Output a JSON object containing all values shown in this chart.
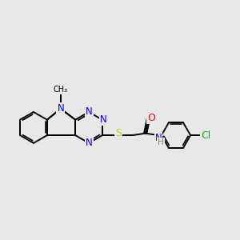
{
  "background_color": "#e8e8e8",
  "bond_color": "#000000",
  "atom_colors": {
    "N": "#0000ff",
    "S": "#cccc00",
    "O": "#ff0000",
    "Cl": "#00bb00",
    "H": "#888888",
    "C": "#000000"
  },
  "figsize": [
    3.0,
    3.0
  ],
  "dpi": 100
}
